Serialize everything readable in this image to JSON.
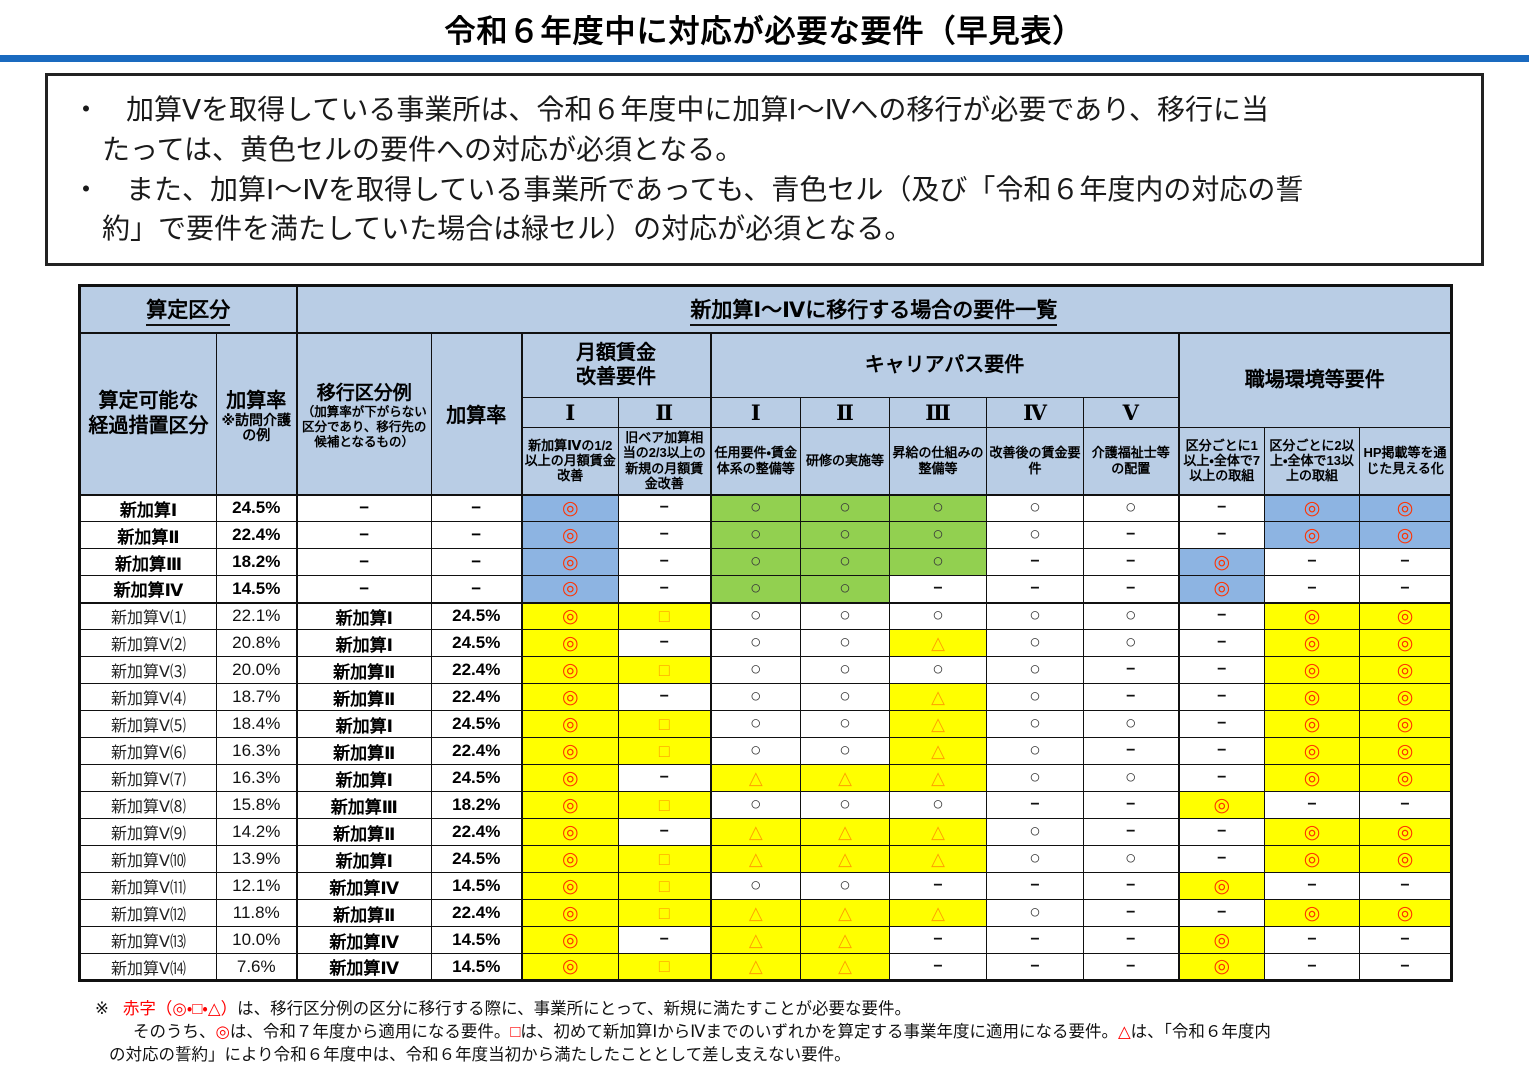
{
  "title": "令和６年度中に対応が必要な要件（早見表）",
  "intro": {
    "bullet_marker": "・",
    "bullets": [
      [
        "加算Ⅴを取得している事業所は、令和６年度中に加算Ⅰ～Ⅳへの移行が必要であり、移行に当",
        "たっては、黄色セルの要件への対応が必須となる。"
      ],
      [
        "また、加算Ⅰ～Ⅳを取得している事業所であっても、青色セル（及び「令和６年度内の対応の誓",
        "約」で要件を満たしていた場合は緑セル）の対応が必須となる。"
      ]
    ]
  },
  "table": {
    "top": {
      "left": "算定区分",
      "right": "新加算Ⅰ～Ⅳに移行する場合の要件一覧"
    },
    "header": {
      "category": [
        "算定可能な",
        "経過措置区分"
      ],
      "rate_label": "加算率",
      "rate_note": "※訪問介護の例",
      "transfer_label": "移行区分例",
      "transfer_note": "（加算率が下がらない区分であり、移行先の候補となるもの）",
      "rate2_label": "加算率",
      "monthly_group": [
        "月額賃金",
        "改善要件"
      ],
      "career_group": "キャリアパス要件",
      "workplace_group": "職場環境等要件",
      "monthly_cols": [
        {
          "num": "Ⅰ",
          "desc": "新加算Ⅳの1/2以上の月額賃金改善"
        },
        {
          "num": "Ⅱ",
          "desc": "旧ベア加算相当の2/3以上の新規の月額賃金改善"
        }
      ],
      "career_cols": [
        {
          "num": "Ⅰ",
          "desc": "任用要件・賃金体系の整備等"
        },
        {
          "num": "Ⅱ",
          "desc": "研修の実施等"
        },
        {
          "num": "Ⅲ",
          "desc": "昇給の仕組みの整備等"
        },
        {
          "num": "Ⅳ",
          "desc": "改善後の賃金要件"
        },
        {
          "num": "Ⅴ",
          "desc": "介護福祉士等の配置"
        }
      ],
      "workplace_cols": [
        {
          "desc": "区分ごとに1以上・全体で7以上の取組"
        },
        {
          "desc": "区分ごとに2以上・全体で13以上の取組"
        },
        {
          "desc": "HP掲載等を通じた見える化"
        }
      ]
    },
    "symbols": {
      "dc": "◎",
      "c": "○",
      "sq": "□",
      "tr": "△",
      "dash": "−"
    },
    "rows": [
      {
        "label": "新加算Ⅰ",
        "bold": true,
        "rate": "24.5%",
        "transfer": "−",
        "transfer_rate": "−",
        "cells": [
          "dc:blue",
          "dash:white",
          "c:green",
          "c:green",
          "c:green",
          "c:white",
          "c:white",
          "dash:white",
          "dc:blue",
          "dc:blue"
        ]
      },
      {
        "label": "新加算Ⅱ",
        "bold": true,
        "rate": "22.4%",
        "transfer": "−",
        "transfer_rate": "−",
        "cells": [
          "dc:blue",
          "dash:white",
          "c:green",
          "c:green",
          "c:green",
          "c:white",
          "dash:white",
          "dash:white",
          "dc:blue",
          "dc:blue"
        ]
      },
      {
        "label": "新加算Ⅲ",
        "bold": true,
        "rate": "18.2%",
        "transfer": "−",
        "transfer_rate": "−",
        "cells": [
          "dc:blue",
          "dash:white",
          "c:green",
          "c:green",
          "c:green",
          "dash:white",
          "dash:white",
          "dc:blue",
          "dash:white",
          "dash:white"
        ]
      },
      {
        "label": "新加算Ⅳ",
        "bold": true,
        "rate": "14.5%",
        "transfer": "−",
        "transfer_rate": "−",
        "thick_bottom": true,
        "cells": [
          "dc:blue",
          "dash:white",
          "c:green",
          "c:green",
          "dash:white",
          "dash:white",
          "dash:white",
          "dc:blue",
          "dash:white",
          "dash:white"
        ]
      },
      {
        "label": "新加算Ⅴ⑴",
        "bold": false,
        "rate": "22.1%",
        "transfer": "新加算Ⅰ",
        "transfer_rate": "24.5%",
        "cells": [
          "dc:yellow",
          "sq:yellow",
          "c:white",
          "c:white",
          "c:white",
          "c:white",
          "c:white",
          "dash:white",
          "dc:yellow",
          "dc:yellow"
        ]
      },
      {
        "label": "新加算Ⅴ⑵",
        "bold": false,
        "rate": "20.8%",
        "transfer": "新加算Ⅰ",
        "transfer_rate": "24.5%",
        "cells": [
          "dc:yellow",
          "dash:white",
          "c:white",
          "c:white",
          "tr:yellow",
          "c:white",
          "c:white",
          "dash:white",
          "dc:yellow",
          "dc:yellow"
        ]
      },
      {
        "label": "新加算Ⅴ⑶",
        "bold": false,
        "rate": "20.0%",
        "transfer": "新加算Ⅱ",
        "transfer_rate": "22.4%",
        "cells": [
          "dc:yellow",
          "sq:yellow",
          "c:white",
          "c:white",
          "c:white",
          "c:white",
          "dash:white",
          "dash:white",
          "dc:yellow",
          "dc:yellow"
        ]
      },
      {
        "label": "新加算Ⅴ⑷",
        "bold": false,
        "rate": "18.7%",
        "transfer": "新加算Ⅱ",
        "transfer_rate": "22.4%",
        "cells": [
          "dc:yellow",
          "dash:white",
          "c:white",
          "c:white",
          "tr:yellow",
          "c:white",
          "dash:white",
          "dash:white",
          "dc:yellow",
          "dc:yellow"
        ]
      },
      {
        "label": "新加算Ⅴ⑸",
        "bold": false,
        "rate": "18.4%",
        "transfer": "新加算Ⅰ",
        "transfer_rate": "24.5%",
        "cells": [
          "dc:yellow",
          "sq:yellow",
          "c:white",
          "c:white",
          "tr:yellow",
          "c:white",
          "c:white",
          "dash:white",
          "dc:yellow",
          "dc:yellow"
        ]
      },
      {
        "label": "新加算Ⅴ⑹",
        "bold": false,
        "rate": "16.3%",
        "transfer": "新加算Ⅱ",
        "transfer_rate": "22.4%",
        "cells": [
          "dc:yellow",
          "sq:yellow",
          "c:white",
          "c:white",
          "tr:yellow",
          "c:white",
          "dash:white",
          "dash:white",
          "dc:yellow",
          "dc:yellow"
        ]
      },
      {
        "label": "新加算Ⅴ⑺",
        "bold": false,
        "rate": "16.3%",
        "transfer": "新加算Ⅰ",
        "transfer_rate": "24.5%",
        "cells": [
          "dc:yellow",
          "dash:white",
          "tr:yellow",
          "tr:yellow",
          "tr:yellow",
          "c:white",
          "c:white",
          "dash:white",
          "dc:yellow",
          "dc:yellow"
        ]
      },
      {
        "label": "新加算Ⅴ⑻",
        "bold": false,
        "rate": "15.8%",
        "transfer": "新加算Ⅲ",
        "transfer_rate": "18.2%",
        "cells": [
          "dc:yellow",
          "sq:yellow",
          "c:white",
          "c:white",
          "c:white",
          "dash:white",
          "dash:white",
          "dc:yellow",
          "dash:white",
          "dash:white"
        ]
      },
      {
        "label": "新加算Ⅴ⑼",
        "bold": false,
        "rate": "14.2%",
        "transfer": "新加算Ⅱ",
        "transfer_rate": "22.4%",
        "cells": [
          "dc:yellow",
          "dash:white",
          "tr:yellow",
          "tr:yellow",
          "tr:yellow",
          "c:white",
          "dash:white",
          "dash:white",
          "dc:yellow",
          "dc:yellow"
        ]
      },
      {
        "label": "新加算Ⅴ⑽",
        "bold": false,
        "rate": "13.9%",
        "transfer": "新加算Ⅰ",
        "transfer_rate": "24.5%",
        "cells": [
          "dc:yellow",
          "sq:yellow",
          "tr:yellow",
          "tr:yellow",
          "tr:yellow",
          "c:white",
          "c:white",
          "dash:white",
          "dc:yellow",
          "dc:yellow"
        ]
      },
      {
        "label": "新加算Ⅴ⑾",
        "bold": false,
        "rate": "12.1%",
        "transfer": "新加算Ⅳ",
        "transfer_rate": "14.5%",
        "cells": [
          "dc:yellow",
          "sq:yellow",
          "c:white",
          "c:white",
          "dash:white",
          "dash:white",
          "dash:white",
          "dc:yellow",
          "dash:white",
          "dash:white"
        ]
      },
      {
        "label": "新加算Ⅴ⑿",
        "bold": false,
        "rate": "11.8%",
        "transfer": "新加算Ⅱ",
        "transfer_rate": "22.4%",
        "cells": [
          "dc:yellow",
          "sq:yellow",
          "tr:yellow",
          "tr:yellow",
          "tr:yellow",
          "c:white",
          "dash:white",
          "dash:white",
          "dc:yellow",
          "dc:yellow"
        ]
      },
      {
        "label": "新加算Ⅴ⒀",
        "bold": false,
        "rate": "10.0%",
        "transfer": "新加算Ⅳ",
        "transfer_rate": "14.5%",
        "cells": [
          "dc:yellow",
          "dash:white",
          "tr:yellow",
          "tr:yellow",
          "dash:white",
          "dash:white",
          "dash:white",
          "dc:yellow",
          "dash:white",
          "dash:white"
        ]
      },
      {
        "label": "新加算Ⅴ⒁",
        "bold": false,
        "rate": "7.6%",
        "transfer": "新加算Ⅳ",
        "transfer_rate": "14.5%",
        "cells": [
          "dc:yellow",
          "sq:yellow",
          "tr:yellow",
          "tr:yellow",
          "dash:white",
          "dash:white",
          "dash:white",
          "dc:yellow",
          "dash:white",
          "dash:white"
        ]
      }
    ]
  },
  "notes": {
    "marker": "※",
    "lines": [
      [
        {
          "t": "赤字（◎・□・△）",
          "red": true
        },
        {
          "t": "は、移行区分例の区分に移行する際に、事業所にとって、新規に満たすことが必要な要件。",
          "red": false
        }
      ],
      [
        {
          "t": "そのうち、",
          "red": false
        },
        {
          "t": "◎",
          "red": true
        },
        {
          "t": "は、令和７年度から適用になる要件。",
          "red": false
        },
        {
          "t": "□",
          "red": true
        },
        {
          "t": "は、初めて新加算ⅠからⅣまでのいずれかを算定する事業年度に適用になる要件。",
          "red": false
        },
        {
          "t": "△",
          "red": true
        },
        {
          "t": "は、「令和６年度内",
          "red": false
        }
      ],
      [
        {
          "t": "の対応の誓約」により令和６年度中は、令和６年度当初から満たしたこととして差し支えない要件。",
          "red": false
        }
      ]
    ]
  },
  "colors": {
    "header_bg": "#B9CDE5",
    "blue": "#8DB4E2",
    "green": "#92D050",
    "yellow": "#FFFF00",
    "accent_bar": "#1A6ABF",
    "symbol_red": "#FF3200",
    "symbol_orange": "#FFA000",
    "note_red": "#FF0000"
  }
}
